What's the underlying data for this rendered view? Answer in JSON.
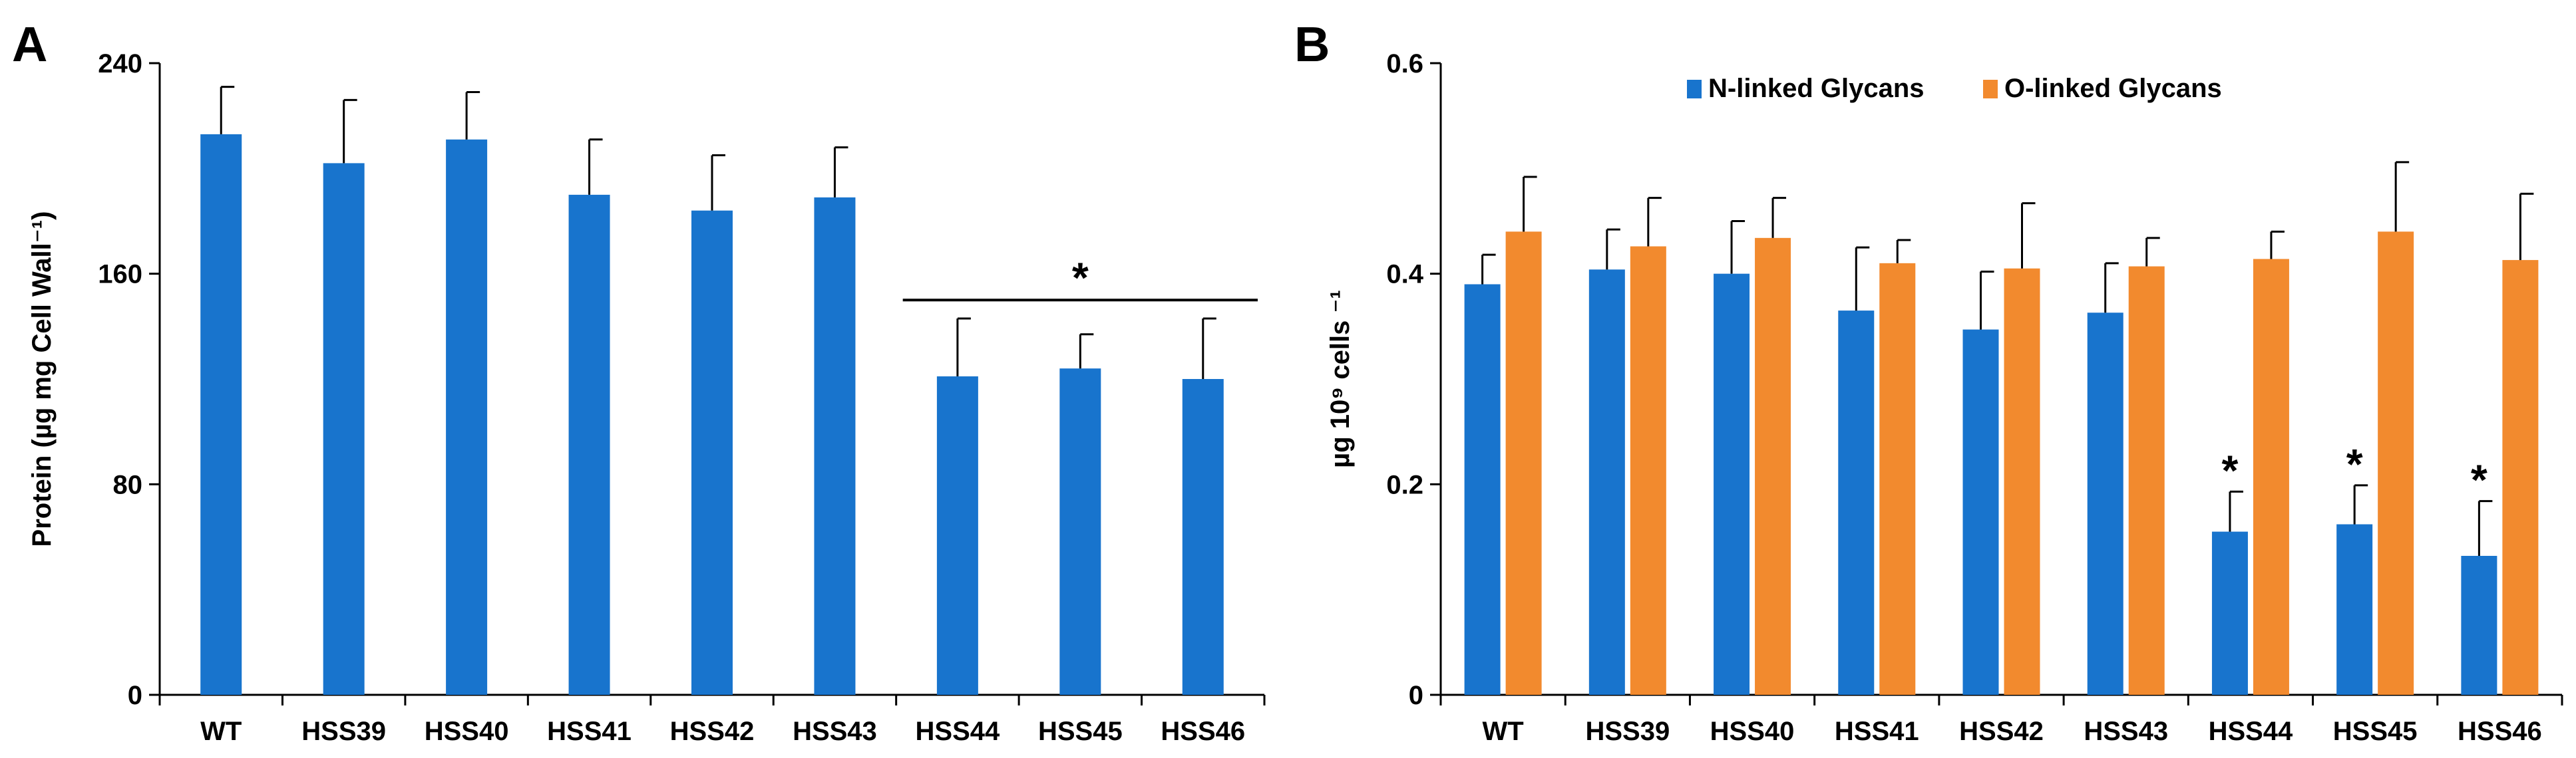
{
  "chart_data": [
    {
      "panel": "A",
      "type": "bar",
      "title": "",
      "xlabel": "",
      "ylabel": "Protein (µg mg Cell Wall⁻¹)",
      "ylim": [
        0,
        240
      ],
      "yticks": [
        0,
        80,
        160,
        240
      ],
      "grid": false,
      "categories": [
        "WT",
        "HSS39",
        "HSS40",
        "HSS41",
        "HSS42",
        "HSS43",
        "HSS44",
        "HSS45",
        "HSS46"
      ],
      "series": [
        {
          "name": "Protein",
          "color": "#1874CD",
          "values": [
            213,
            202,
            211,
            190,
            184,
            189,
            121,
            124,
            120
          ],
          "errors": [
            18,
            24,
            18,
            21,
            21,
            19,
            22,
            13,
            23
          ]
        }
      ],
      "annotations": [
        {
          "text": "*",
          "type": "bracket",
          "from": "HSS44",
          "to": "HSS46",
          "y": 150
        }
      ]
    },
    {
      "panel": "B",
      "type": "bar",
      "title": "",
      "xlabel": "",
      "ylabel": "µg 10⁹ cells ⁻¹",
      "ylim": [
        0,
        0.6
      ],
      "yticks": [
        0,
        0.2,
        0.4,
        0.6
      ],
      "ytick_labels": [
        "0",
        "0.2",
        "0.4",
        "0.6"
      ],
      "grid": false,
      "legend": "top-center",
      "categories": [
        "WT",
        "HSS39",
        "HSS40",
        "HSS41",
        "HSS42",
        "HSS43",
        "HSS44",
        "HSS45",
        "HSS46"
      ],
      "series": [
        {
          "name": "N-linked Glycans",
          "color": "#1874CD",
          "values": [
            0.39,
            0.404,
            0.4,
            0.365,
            0.347,
            0.363,
            0.155,
            0.162,
            0.132
          ],
          "errors": [
            0.028,
            0.038,
            0.05,
            0.06,
            0.055,
            0.047,
            0.038,
            0.037,
            0.052
          ]
        },
        {
          "name": "O-linked Glycans",
          "color": "#F28A2E",
          "values": [
            0.44,
            0.426,
            0.434,
            0.41,
            0.405,
            0.407,
            0.414,
            0.44,
            0.413
          ],
          "errors": [
            0.052,
            0.046,
            0.038,
            0.022,
            0.062,
            0.027,
            0.026,
            0.066,
            0.063
          ]
        }
      ],
      "annotations": [
        {
          "text": "*",
          "series": "N-linked Glycans",
          "category": "HSS44"
        },
        {
          "text": "*",
          "series": "N-linked Glycans",
          "category": "HSS45"
        },
        {
          "text": "*",
          "series": "N-linked Glycans",
          "category": "HSS46"
        }
      ]
    }
  ],
  "panel_labels": {
    "a": "A",
    "b": "B"
  }
}
